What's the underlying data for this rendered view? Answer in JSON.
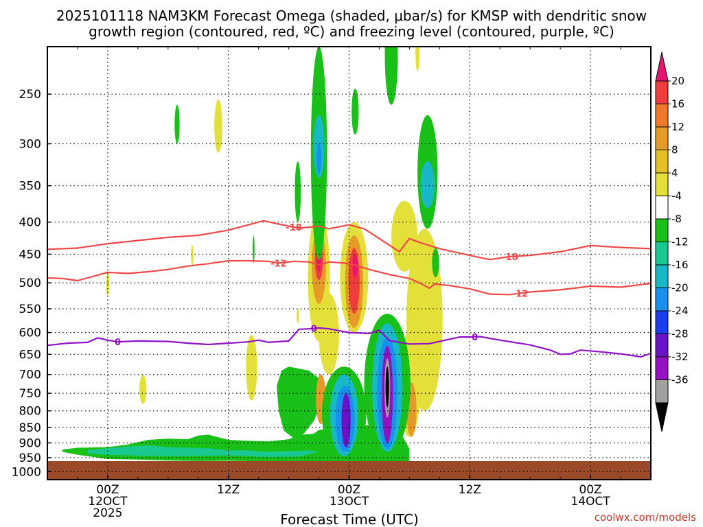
{
  "chart_data": {
    "type": "time-height cross section",
    "title_line1": "2025101118 NAM3KM Forecast Omega (shaded, μbar/s) for KMSP with dendritic snow",
    "title_line2": "growth region (contoured, red, ºC) and freezing level (contoured, purple, ºC)",
    "xlabel": "Forecast Time (UTC)",
    "credit": "coolwx.com/models",
    "x_axis": {
      "unit": "hours since 2025-10-11 18Z",
      "range": [
        0,
        60
      ],
      "ticks": [
        {
          "hour": 6,
          "labels": [
            "00Z",
            "12OCT",
            "2025"
          ]
        },
        {
          "hour": 18,
          "labels": [
            "12Z"
          ]
        },
        {
          "hour": 30,
          "labels": [
            "00Z",
            "13OCT"
          ]
        },
        {
          "hour": 42,
          "labels": [
            "12Z"
          ]
        },
        {
          "hour": 54,
          "labels": [
            "00Z",
            "14OCT"
          ]
        }
      ],
      "minor_grid_hours": [
        0,
        3,
        9,
        12,
        15,
        21,
        24,
        27,
        33,
        36,
        39,
        45,
        48,
        51,
        57,
        60
      ]
    },
    "y_axis": {
      "unit": "hPa",
      "range": [
        1030,
        210
      ],
      "ticks": [
        "250",
        "300",
        "350",
        "400",
        "450",
        "500",
        "550",
        "600",
        "650",
        "700",
        "750",
        "800",
        "850",
        "900",
        "950",
        "1000"
      ]
    },
    "colorbar": {
      "labels": [
        "20",
        "16",
        "12",
        "8",
        "4",
        "-4",
        "-8",
        "-12",
        "-16",
        "-20",
        "-24",
        "-28",
        "-32",
        "-36"
      ],
      "colors": [
        "#e8136e",
        "#f03c3c",
        "#f07a28",
        "#e89a28",
        "#e6c025",
        "#e3e03a",
        "#ffffff",
        "#18c018",
        "#18c890",
        "#18b8c8",
        "#1890f0",
        "#1c3cf0",
        "#6a12c8",
        "#9410c0",
        "#a0a0a0",
        "#000000"
      ]
    },
    "contours": [
      {
        "name": "dendritic-minus18",
        "label": "-18",
        "color": "#f04848",
        "label_hours": [
          24.5,
          46
        ],
        "points": [
          [
            0,
            442
          ],
          [
            3,
            440
          ],
          [
            6,
            433
          ],
          [
            9,
            428
          ],
          [
            12,
            423
          ],
          [
            15,
            420
          ],
          [
            18,
            412
          ],
          [
            20,
            404
          ],
          [
            21.5,
            398
          ],
          [
            23,
            403
          ],
          [
            25,
            409
          ],
          [
            27,
            406
          ],
          [
            28,
            410
          ],
          [
            30,
            404
          ],
          [
            31.5,
            410
          ],
          [
            33,
            425
          ],
          [
            35,
            446
          ],
          [
            36,
            425
          ],
          [
            37,
            431
          ],
          [
            39,
            441
          ],
          [
            42,
            452
          ],
          [
            44,
            459
          ],
          [
            46,
            454
          ],
          [
            48,
            452
          ],
          [
            51,
            446
          ],
          [
            54,
            436
          ],
          [
            57,
            439
          ],
          [
            60,
            441
          ]
        ]
      },
      {
        "name": "dendritic-minus12",
        "label": "-12",
        "color": "#f04848",
        "label_hours": [
          23,
          47
        ],
        "points": [
          [
            0,
            491
          ],
          [
            1.5,
            492
          ],
          [
            3,
            496
          ],
          [
            4,
            491
          ],
          [
            6,
            481
          ],
          [
            8,
            483
          ],
          [
            10,
            480
          ],
          [
            12,
            476
          ],
          [
            14,
            470
          ],
          [
            16,
            466
          ],
          [
            18,
            461
          ],
          [
            20,
            461
          ],
          [
            22,
            462
          ],
          [
            23,
            465
          ],
          [
            24.5,
            462
          ],
          [
            26,
            463
          ],
          [
            27,
            468
          ],
          [
            28,
            463
          ],
          [
            29.5,
            465
          ],
          [
            30.5,
            468
          ],
          [
            32,
            476
          ],
          [
            34,
            485
          ],
          [
            36,
            492
          ],
          [
            37,
            500
          ],
          [
            38,
            510
          ],
          [
            38.5,
            502
          ],
          [
            40,
            505
          ],
          [
            42,
            511
          ],
          [
            44,
            521
          ],
          [
            46,
            522
          ],
          [
            48,
            517
          ],
          [
            51,
            513
          ],
          [
            54,
            506
          ],
          [
            57,
            508
          ],
          [
            60,
            501
          ]
        ]
      },
      {
        "name": "freezing-level",
        "label": "0",
        "color": "#9010c8",
        "label_hours": [
          7,
          26.5,
          42.5
        ],
        "points": [
          [
            0,
            629
          ],
          [
            2,
            624
          ],
          [
            4,
            622
          ],
          [
            5,
            612
          ],
          [
            6,
            617
          ],
          [
            7,
            621
          ],
          [
            9,
            619
          ],
          [
            12,
            620
          ],
          [
            14,
            624
          ],
          [
            16,
            627
          ],
          [
            18,
            624
          ],
          [
            20,
            621
          ],
          [
            21,
            617
          ],
          [
            22,
            622
          ],
          [
            24,
            619
          ],
          [
            25,
            593
          ],
          [
            26,
            592
          ],
          [
            27,
            590
          ],
          [
            28,
            592
          ],
          [
            30,
            600
          ],
          [
            32,
            602
          ],
          [
            33,
            595
          ],
          [
            34,
            618
          ],
          [
            36,
            626
          ],
          [
            38,
            625
          ],
          [
            39,
            620
          ],
          [
            41,
            610
          ],
          [
            42,
            610
          ],
          [
            43,
            609
          ],
          [
            45,
            617
          ],
          [
            48,
            628
          ],
          [
            50,
            640
          ],
          [
            51,
            650
          ],
          [
            52,
            649
          ],
          [
            53,
            640
          ],
          [
            55,
            644
          ],
          [
            57,
            649
          ],
          [
            59,
            656
          ],
          [
            60,
            648
          ]
        ]
      }
    ],
    "surface": {
      "color": "#9a4a28",
      "description": "terrain below surface pressure",
      "top_hpa_range": [
        987,
        995
      ]
    }
  }
}
